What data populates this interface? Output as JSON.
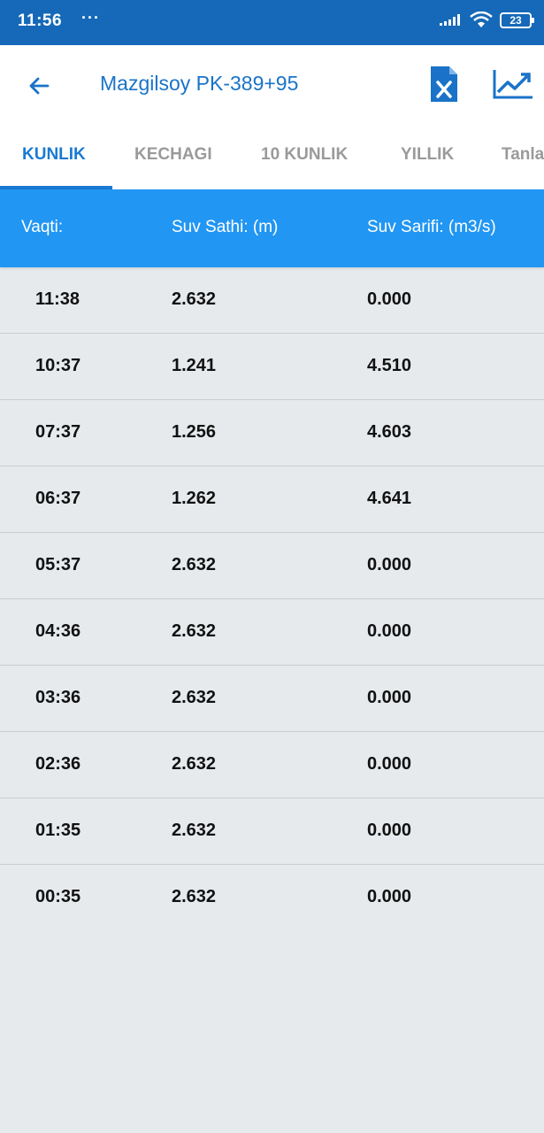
{
  "status_bar": {
    "time": "11:56",
    "dots": "···",
    "battery": "23",
    "signal_icon": "signal-icon",
    "wifi_icon": "wifi-icon"
  },
  "app_bar": {
    "title": "Mazgilsoy PK-389+95",
    "accent_color": "#1a73c9"
  },
  "tabs": [
    {
      "label": "KUNLIK",
      "active": true
    },
    {
      "label": "KECHAGI",
      "active": false
    },
    {
      "label": "10 KUNLIK",
      "active": false
    },
    {
      "label": "YILLIK",
      "active": false
    },
    {
      "label": "Tanlash",
      "active": false
    }
  ],
  "table": {
    "headers": [
      "Vaqti:",
      "Suv Sathi: (m)",
      "Suv Sarifi: (m3/s)"
    ],
    "rows": [
      [
        "11:38",
        "2.632",
        "0.000"
      ],
      [
        "10:37",
        "1.241",
        "4.510"
      ],
      [
        "07:37",
        "1.256",
        "4.603"
      ],
      [
        "06:37",
        "1.262",
        "4.641"
      ],
      [
        "05:37",
        "2.632",
        "0.000"
      ],
      [
        "04:36",
        "2.632",
        "0.000"
      ],
      [
        "03:36",
        "2.632",
        "0.000"
      ],
      [
        "02:36",
        "2.632",
        "0.000"
      ],
      [
        "01:35",
        "2.632",
        "0.000"
      ],
      [
        "00:35",
        "2.632",
        "0.000"
      ]
    ],
    "header_color": "#2196f3"
  }
}
